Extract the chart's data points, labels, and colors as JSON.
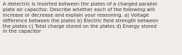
{
  "text": "A dielectric is inserted between the plates of a charged parallel\nplate air capacitor. Describe whether each of the following will\nincrease or decrease and explain your reasoning. a) Voltage\ndifference between the plates b) Electric field strength between\nthe plates c) Total charge stored on the plates d) Energy stored\nin the capacitor",
  "background_color": "#eeede8",
  "text_color": "#3a3830",
  "font_size": 5.05,
  "fig_width": 2.62,
  "fig_height": 0.79,
  "dpi": 100
}
